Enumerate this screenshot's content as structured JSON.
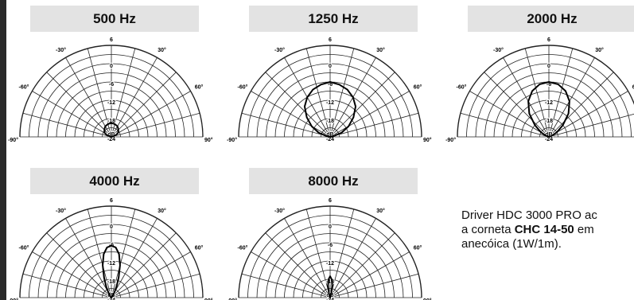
{
  "chart_data": [
    {
      "type": "polar",
      "title": "500 Hz",
      "db_ticks": [
        "6",
        "0",
        "-6",
        "-12",
        "-18",
        "-24"
      ],
      "angle_labels": [
        "-90°",
        "-60°",
        "-30°",
        "30°",
        "60°",
        "90°"
      ],
      "unit": "dB",
      "rlim": [
        -24,
        6
      ],
      "series": [
        {
          "angles": [
            -90,
            -80,
            -70,
            -60,
            -50,
            -40,
            -30,
            -20,
            -10,
            0,
            10,
            20,
            30,
            40,
            50,
            60,
            70,
            80,
            90
          ],
          "values": [
            -24,
            -24,
            -22.5,
            -21.5,
            -21,
            -20.5,
            -20,
            -19.8,
            -19.6,
            -19.5,
            -19.6,
            -19.8,
            -20,
            -20.5,
            -21,
            -21.5,
            -22.5,
            -24,
            -24
          ]
        }
      ]
    },
    {
      "type": "polar",
      "title": "1250 Hz",
      "db_ticks": [
        "6",
        "0",
        "-6",
        "-12",
        "-18",
        "-24"
      ],
      "angle_labels": [
        "-90°",
        "-60°",
        "-30°",
        "30°",
        "60°",
        "90°"
      ],
      "unit": "dB",
      "rlim": [
        -24,
        6
      ],
      "series": [
        {
          "angles": [
            -90,
            -80,
            -70,
            -60,
            -50,
            -40,
            -30,
            -20,
            -10,
            0,
            10,
            20,
            30,
            40,
            50,
            60,
            70,
            80,
            90
          ],
          "values": [
            -24,
            -23,
            -20,
            -17,
            -14,
            -11,
            -9,
            -7.5,
            -6.6,
            -6,
            -6.6,
            -7.5,
            -9,
            -11,
            -14,
            -17,
            -20,
            -23,
            -24
          ]
        }
      ]
    },
    {
      "type": "polar",
      "title": "2000 Hz",
      "db_ticks": [
        "6",
        "0",
        "-6",
        "-12",
        "-18",
        "-24"
      ],
      "angle_labels": [
        "-90°",
        "-60°",
        "-30°",
        "30°",
        "60°"
      ],
      "unit": "dB",
      "rlim": [
        -24,
        6
      ],
      "series": [
        {
          "angles": [
            -90,
            -80,
            -70,
            -60,
            -50,
            -40,
            -30,
            -20,
            -10,
            0,
            10,
            20,
            30,
            40,
            50,
            60,
            70,
            80,
            90
          ],
          "values": [
            -24,
            -24,
            -23,
            -21,
            -18,
            -14,
            -10.5,
            -8,
            -6.5,
            -6,
            -6.5,
            -8,
            -10.5,
            -14,
            -18,
            -21,
            -23,
            -24,
            -24
          ]
        }
      ]
    },
    {
      "type": "polar",
      "title": "4000 Hz",
      "db_ticks": [
        "6",
        "0",
        "-6",
        "-12",
        "-18",
        "-24"
      ],
      "angle_labels": [
        "-90°",
        "-60°",
        "-30°",
        "30°",
        "60°",
        "90°"
      ],
      "unit": "dB",
      "rlim": [
        -24,
        6
      ],
      "series": [
        {
          "angles": [
            -90,
            -80,
            -70,
            -60,
            -50,
            -40,
            -30,
            -25,
            -20,
            -15,
            -10,
            -5,
            0,
            5,
            10,
            15,
            20,
            25,
            30,
            40,
            50,
            60,
            70,
            80,
            90
          ],
          "values": [
            -24,
            -24,
            -24,
            -24,
            -24,
            -23.5,
            -22,
            -20,
            -17,
            -13,
            -9.5,
            -7.5,
            -7,
            -7.5,
            -9.5,
            -13,
            -17,
            -20,
            -22,
            -23.5,
            -24,
            -24,
            -24,
            -24,
            -24
          ]
        }
      ]
    },
    {
      "type": "polar",
      "title": "8000 Hz",
      "db_ticks": [
        "6",
        "0",
        "-6",
        "-12",
        "-18",
        "-24"
      ],
      "angle_labels": [
        "-90°",
        "-60°",
        "-30°",
        "30°",
        "60°",
        "90°"
      ],
      "unit": "dB",
      "rlim": [
        -24,
        6
      ],
      "series": [
        {
          "angles": [
            -90,
            -60,
            -40,
            -30,
            -25,
            -20,
            -15,
            -10,
            -5,
            0,
            5,
            10,
            15,
            20,
            25,
            30,
            40,
            60,
            90
          ],
          "values": [
            -24,
            -24,
            -24,
            -24,
            -24,
            -23.5,
            -22.5,
            -20,
            -18,
            -17,
            -18,
            -20,
            -22.5,
            -23.5,
            -24,
            -24,
            -24,
            -24,
            -24
          ]
        }
      ]
    }
  ],
  "note": {
    "line1": "Driver HDC 3000 PRO ac",
    "line2_pre": "a corneta ",
    "line2_bold": "CHC 14-50",
    "line2_post": " em",
    "line3": "anecóica (1W/1m)."
  }
}
